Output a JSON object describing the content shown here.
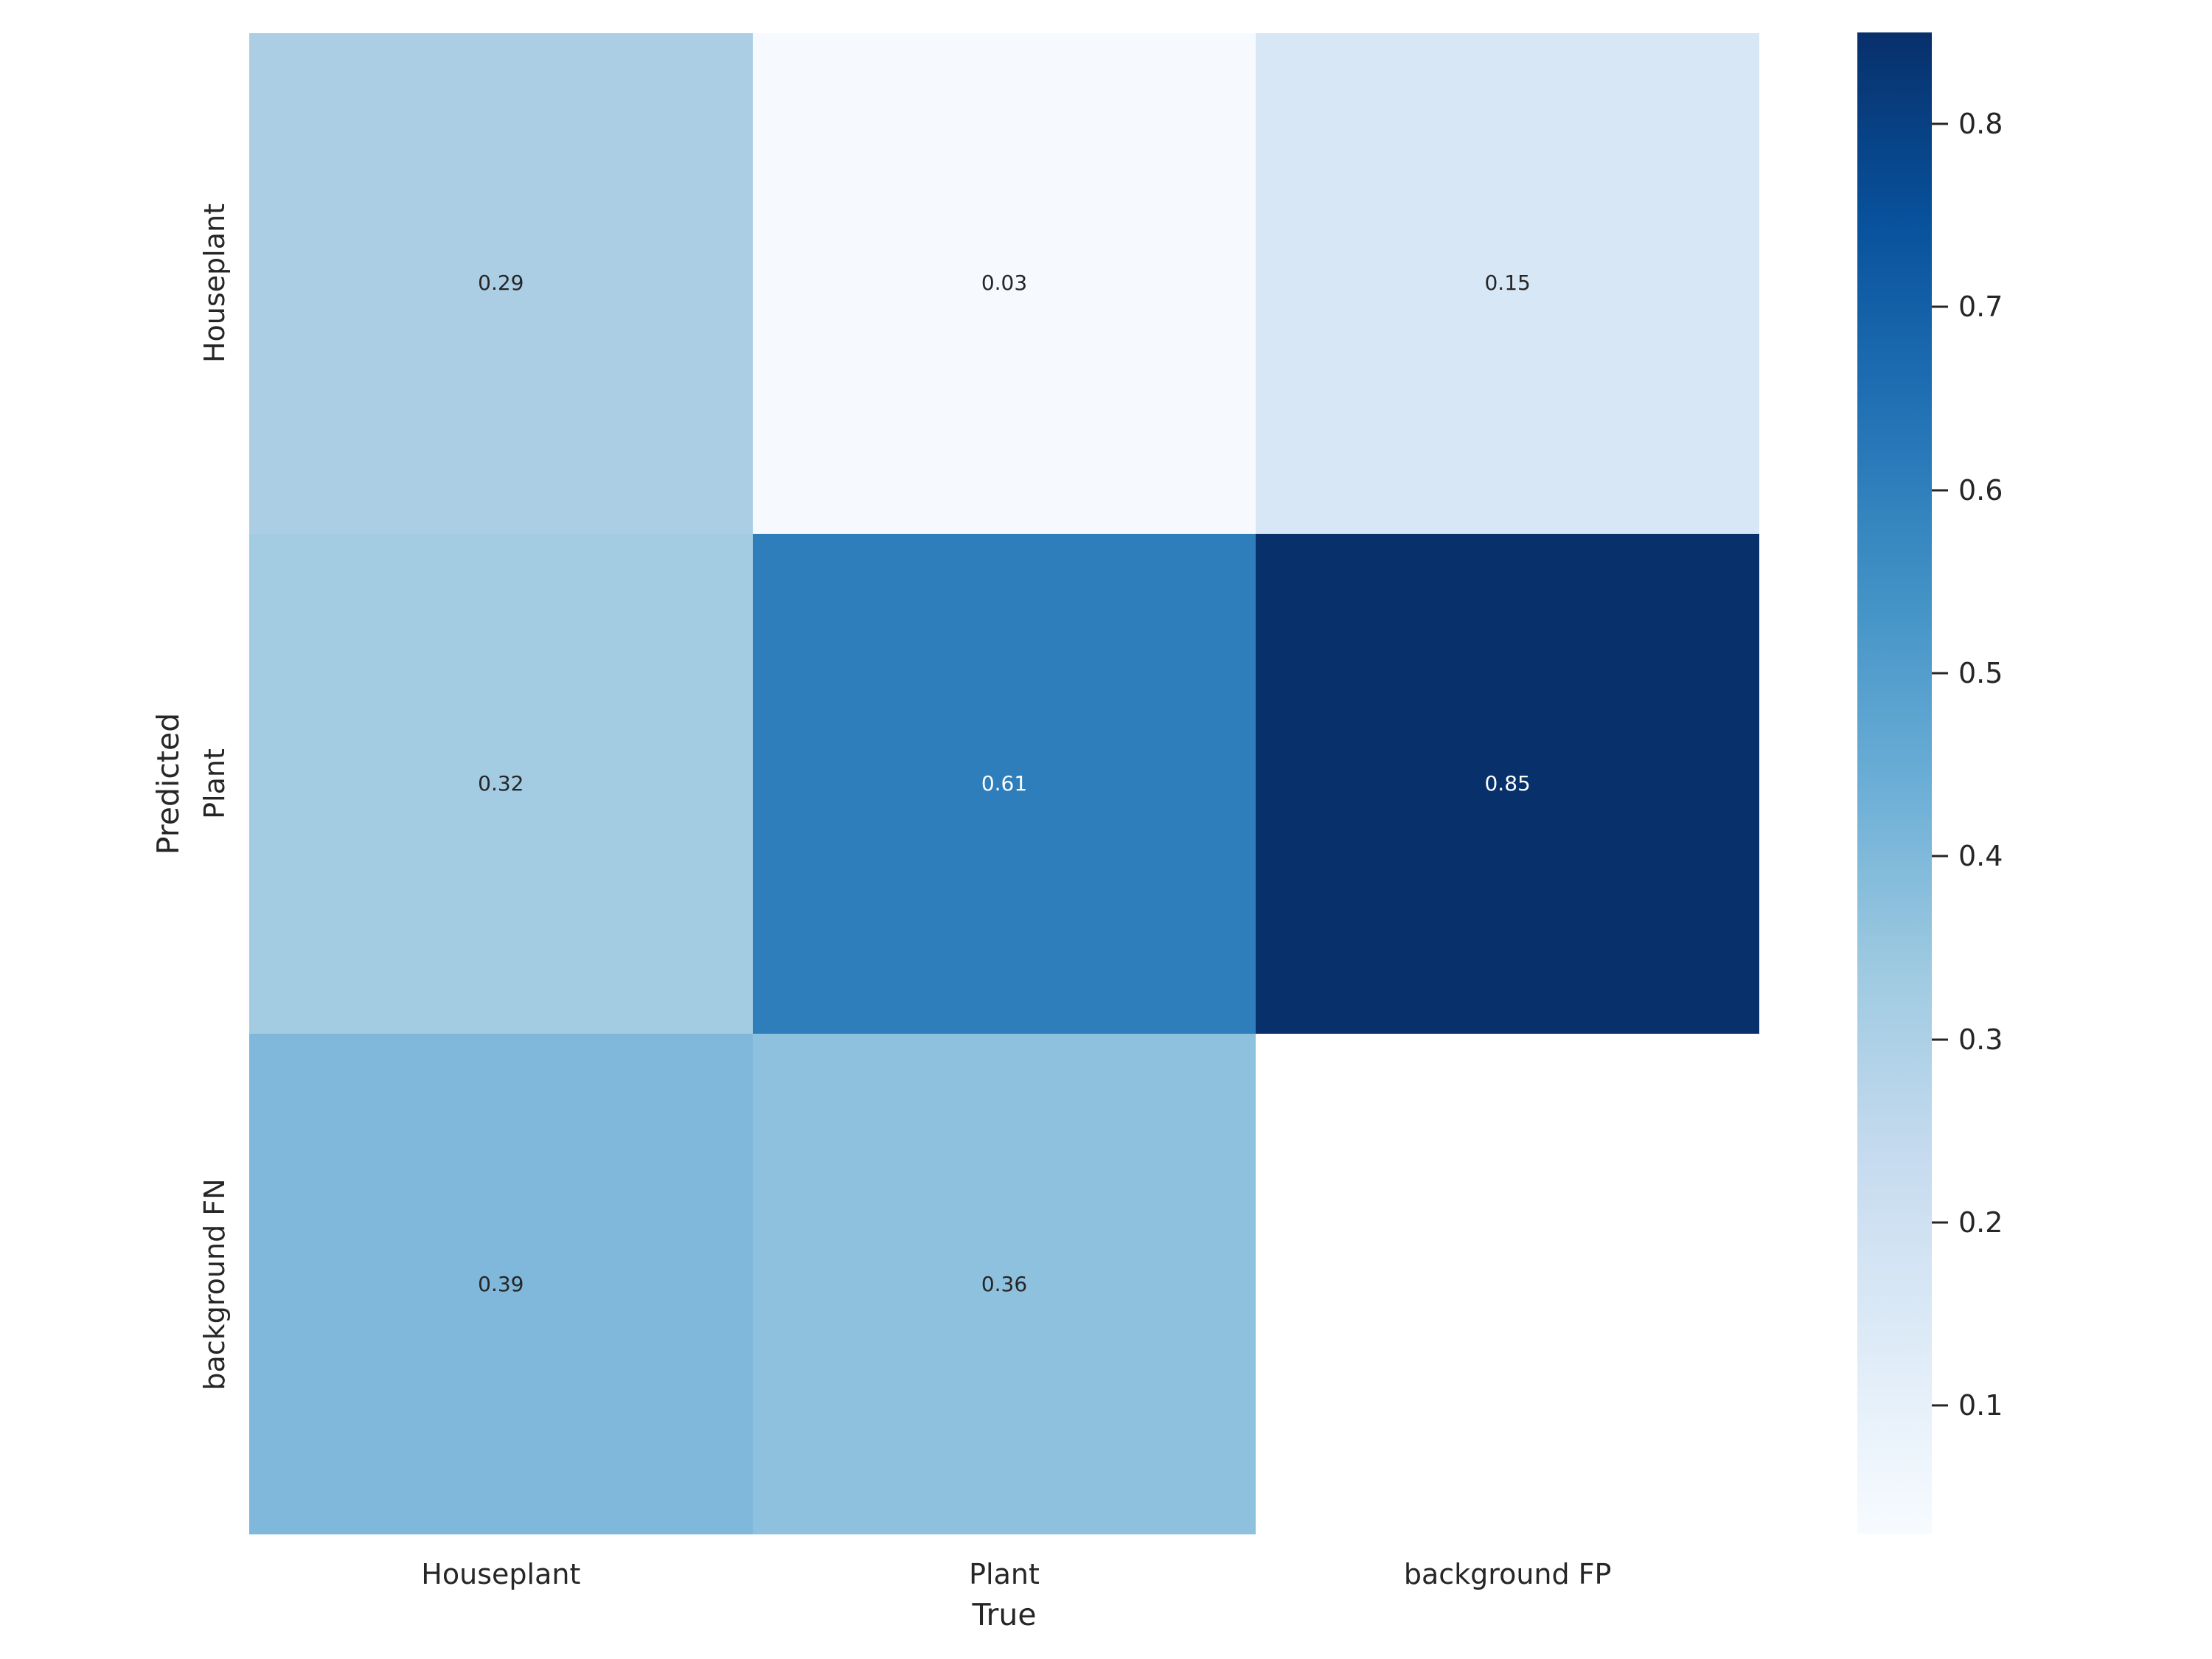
{
  "chart_data": {
    "type": "heatmap",
    "title": "",
    "xlabel": "True",
    "ylabel": "Predicted",
    "x_categories": [
      "Houseplant",
      "Plant",
      "background FP"
    ],
    "y_categories": [
      "Houseplant",
      "Plant",
      "background FN"
    ],
    "values": [
      [
        0.29,
        0.03,
        0.15
      ],
      [
        0.32,
        0.61,
        0.85
      ],
      [
        0.39,
        0.36,
        null
      ]
    ],
    "cell_labels": [
      [
        "0.29",
        "0.03",
        "0.15"
      ],
      [
        "0.32",
        "0.61",
        "0.85"
      ],
      [
        "0.39",
        "0.36",
        ""
      ]
    ],
    "cell_colors": [
      [
        "#accee4",
        "#f6fafe",
        "#d8e7f5"
      ],
      [
        "#a3cbe2",
        "#2e7ebc",
        "#08306b"
      ],
      [
        "#7fb8da",
        "#8ec1de",
        "#ffffff"
      ]
    ],
    "cell_text_colors": [
      [
        "#262626",
        "#262626",
        "#262626"
      ],
      [
        "#262626",
        "#ffffff",
        "#ffffff"
      ],
      [
        "#262626",
        "#262626",
        "#262626"
      ]
    ],
    "colormap": "Blues",
    "grid": false,
    "legend_position": "right-colorbar",
    "colorbar": {
      "vmin": 0.03,
      "vmax": 0.85,
      "tick_labels": [
        "0.8",
        "0.7",
        "0.6",
        "0.5",
        "0.4",
        "0.3",
        "0.2",
        "0.1"
      ],
      "ticks": [
        0.8,
        0.7,
        0.6,
        0.5,
        0.4,
        0.3,
        0.2,
        0.1
      ],
      "gradient_stops": [
        {
          "t": 1.0,
          "color": "#08306b"
        },
        {
          "t": 0.875,
          "color": "#08519c"
        },
        {
          "t": 0.75,
          "color": "#2171b5"
        },
        {
          "t": 0.625,
          "color": "#4292c6"
        },
        {
          "t": 0.5,
          "color": "#6baed6"
        },
        {
          "t": 0.375,
          "color": "#9ecae1"
        },
        {
          "t": 0.25,
          "color": "#c6dbef"
        },
        {
          "t": 0.125,
          "color": "#deebf7"
        },
        {
          "t": 0.0,
          "color": "#f7fbff"
        }
      ]
    },
    "text_color": "#262626",
    "annotation_text_dark": "#262626",
    "annotation_text_light": "#ffffff"
  }
}
